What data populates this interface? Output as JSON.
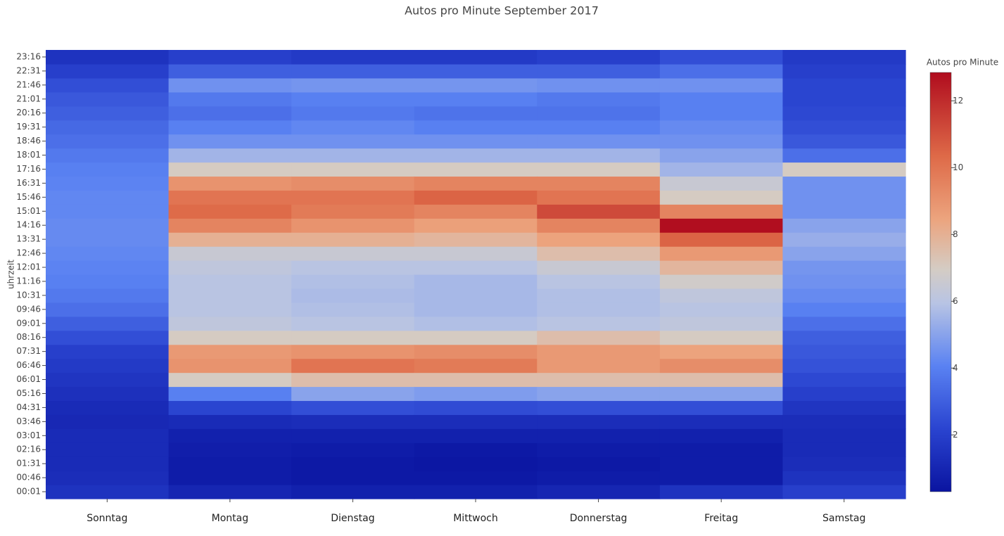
{
  "chart_data": {
    "type": "heatmap",
    "title": "Autos pro Minute September 2017",
    "y_label": "uhrzeit",
    "colorbar_title": "Autos pro Minute",
    "categories": [
      "Sonntag",
      "Montag",
      "Dienstag",
      "Mittwoch",
      "Donnerstag",
      "Freitag",
      "Samstag"
    ],
    "y_categories": [
      "00:01",
      "00:46",
      "01:31",
      "02:16",
      "03:01",
      "03:46",
      "04:31",
      "05:16",
      "06:01",
      "06:46",
      "07:31",
      "08:16",
      "09:01",
      "09:46",
      "10:31",
      "11:16",
      "12:01",
      "12:46",
      "13:31",
      "14:16",
      "15:01",
      "15:46",
      "16:31",
      "17:16",
      "18:01",
      "18:46",
      "19:31",
      "20:16",
      "21:01",
      "21:46",
      "22:31",
      "23:16"
    ],
    "values": [
      [
        1.5,
        1.3,
        1.2,
        1.2,
        1.2,
        1.1,
        1.2,
        1.4,
        1.6,
        1.8,
        2.0,
        2.5,
        3.0,
        3.5,
        3.8,
        4.0,
        4.1,
        4.2,
        4.3,
        4.3,
        4.2,
        4.2,
        4.1,
        4.0,
        3.8,
        3.5,
        3.3,
        3.0,
        2.8,
        2.5,
        2.0,
        1.5
      ],
      [
        1.0,
        0.6,
        0.6,
        0.7,
        0.8,
        1.2,
        2.2,
        4.0,
        7.0,
        9.0,
        8.8,
        7.0,
        6.2,
        6.0,
        6.0,
        6.0,
        6.2,
        6.5,
        8.0,
        9.5,
        10.3,
        10.0,
        9.0,
        7.0,
        5.5,
        4.5,
        4.0,
        3.5,
        3.8,
        4.5,
        3.0,
        2.0
      ],
      [
        0.8,
        0.5,
        0.5,
        0.6,
        0.8,
        1.3,
        2.5,
        5.0,
        7.5,
        10.0,
        9.0,
        7.0,
        6.0,
        5.8,
        5.7,
        5.8,
        6.0,
        6.5,
        8.0,
        9.0,
        9.8,
        10.0,
        9.2,
        7.0,
        5.5,
        4.5,
        4.2,
        3.8,
        4.0,
        4.6,
        3.0,
        1.8
      ],
      [
        0.8,
        0.5,
        0.4,
        0.5,
        0.8,
        1.3,
        2.4,
        4.8,
        7.5,
        9.8,
        9.2,
        7.0,
        5.8,
        5.6,
        5.6,
        5.6,
        6.0,
        6.5,
        7.8,
        8.6,
        9.5,
        10.5,
        9.5,
        7.0,
        5.5,
        4.5,
        4.0,
        3.6,
        4.0,
        4.6,
        3.0,
        1.8
      ],
      [
        1.0,
        0.6,
        0.5,
        0.6,
        0.8,
        1.3,
        2.5,
        5.0,
        7.5,
        8.8,
        8.8,
        7.5,
        6.0,
        5.8,
        5.8,
        6.0,
        6.5,
        7.5,
        8.5,
        9.5,
        11.2,
        10.0,
        9.5,
        7.0,
        5.5,
        4.5,
        4.0,
        3.6,
        3.8,
        4.5,
        3.0,
        2.0
      ],
      [
        1.5,
        0.6,
        0.6,
        0.6,
        0.8,
        1.3,
        2.5,
        5.0,
        7.5,
        9.2,
        8.5,
        7.0,
        6.2,
        6.0,
        6.2,
        6.8,
        7.8,
        8.8,
        10.5,
        12.8,
        9.5,
        7.0,
        6.5,
        5.5,
        5.0,
        4.5,
        4.3,
        4.0,
        4.0,
        4.5,
        3.5,
        2.5
      ],
      [
        2.0,
        1.5,
        1.3,
        1.2,
        1.2,
        1.3,
        1.6,
        2.0,
        2.3,
        2.6,
        2.8,
        3.0,
        3.5,
        4.0,
        4.3,
        4.5,
        4.6,
        5.0,
        5.3,
        5.0,
        4.5,
        4.5,
        4.5,
        7.0,
        3.5,
        2.8,
        2.5,
        2.3,
        2.2,
        2.2,
        2.0,
        1.8
      ]
    ],
    "zlim": [
      0.3,
      12.85
    ],
    "zticks": [
      2,
      4,
      6,
      8,
      10,
      12
    ],
    "colorscale": [
      [
        0,
        "#0a14a0"
      ],
      [
        0.15,
        "#2a44d0"
      ],
      [
        0.3,
        "#5a82f2"
      ],
      [
        0.45,
        "#b8c4e4"
      ],
      [
        0.53,
        "#d4ccc4"
      ],
      [
        0.65,
        "#eca47e"
      ],
      [
        0.8,
        "#de6a48"
      ],
      [
        1,
        "#b00c1e"
      ]
    ]
  }
}
